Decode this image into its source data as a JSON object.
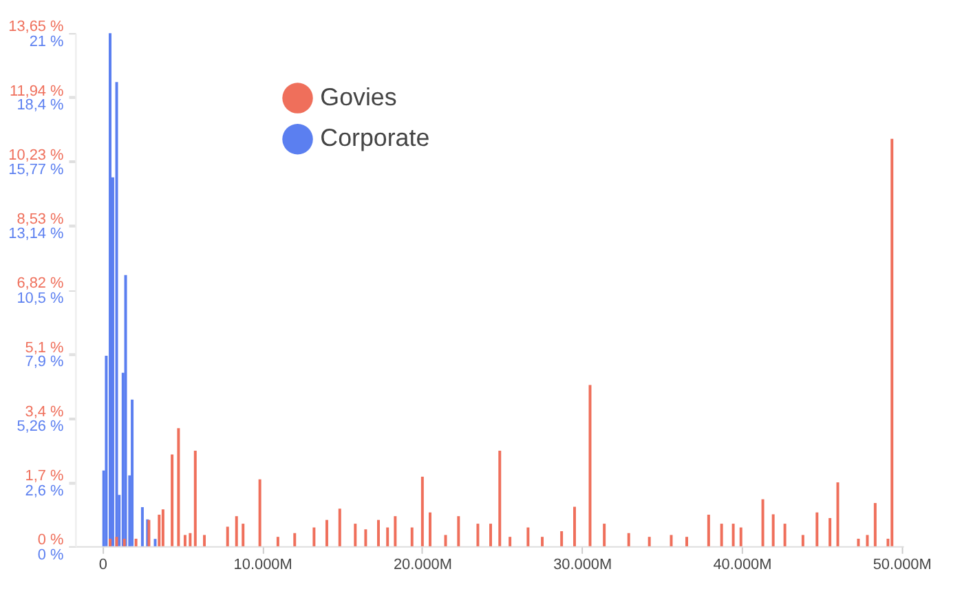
{
  "chart_data": {
    "type": "bar",
    "legend": "top",
    "xlim": [
      -1700,
      50100
    ],
    "xticks": [
      0,
      {
        "value": 10000,
        "label": "10.000M"
      },
      {
        "value": 20000,
        "label": "20.000M"
      },
      {
        "value": 30000,
        "label": "30.000M"
      },
      {
        "value": 40000,
        "label": "40.000M"
      },
      {
        "value": 50000,
        "label": "50.000M"
      }
    ],
    "ylim": [
      0,
      13.65
    ],
    "yticks": [
      {
        "value": 0,
        "label": "0 %"
      },
      {
        "value": 1.7,
        "label": "1,7 %"
      },
      {
        "value": 3.4,
        "label": "3,4 %"
      },
      {
        "value": 5.1,
        "label": "5,1 %"
      },
      {
        "value": 6.82,
        "label": "6,82 %"
      },
      {
        "value": 8.53,
        "label": "8,53 %"
      },
      {
        "value": 10.23,
        "label": "10,23 %"
      },
      {
        "value": 11.94,
        "label": "11,94 %"
      },
      {
        "value": 13.65,
        "label": "13,65 %"
      }
    ],
    "y2lim": [
      0,
      21
    ],
    "y2ticks": [
      {
        "value": 0,
        "label": "0 %"
      },
      {
        "value": 2.6,
        "label": "2,6 %"
      },
      {
        "value": 5.26,
        "label": "5,26 %"
      },
      {
        "value": 7.9,
        "label": "7,9 %"
      },
      {
        "value": 10.5,
        "label": "10,5 %"
      },
      {
        "value": 13.14,
        "label": "13,14 %"
      },
      {
        "value": 15.77,
        "label": "15,77 %"
      },
      {
        "value": 18.4,
        "label": "18,4 %"
      },
      {
        "value": 21,
        "label": "21 %"
      }
    ],
    "series": [
      {
        "name": "Govies",
        "color": "#ef6f5b",
        "x": [
          480,
          890,
          1370,
          2100,
          2910,
          3550,
          3790,
          4360,
          4760,
          5170,
          5490,
          5810,
          6380,
          7830,
          8390,
          8800,
          9850,
          10980,
          12030,
          13240,
          14040,
          14850,
          15820,
          16470,
          17270,
          17840,
          18320,
          19370,
          20020,
          20500,
          21470,
          22280,
          23490,
          24290,
          24860,
          25500,
          26630,
          27520,
          28730,
          29540,
          30510,
          31400,
          32930,
          34220,
          35590,
          36560,
          37930,
          38740,
          39470,
          39950,
          41320,
          41970,
          42700,
          43830,
          44710,
          45520,
          46010,
          47300,
          47860,
          48350,
          49150,
          49400
        ],
        "values": [
          0.2,
          0.25,
          0.2,
          0.2,
          0.7,
          0.84,
          0.98,
          2.44,
          3.14,
          0.3,
          0.35,
          2.54,
          0.3,
          0.52,
          0.8,
          0.6,
          1.78,
          0.25,
          0.35,
          0.5,
          0.7,
          1.0,
          0.6,
          0.45,
          0.7,
          0.5,
          0.8,
          0.5,
          1.85,
          0.9,
          0.3,
          0.8,
          0.6,
          0.6,
          2.54,
          0.25,
          0.5,
          0.25,
          0.4,
          1.05,
          4.29,
          0.6,
          0.35,
          0.25,
          0.3,
          0.25,
          0.84,
          0.6,
          0.6,
          0.5,
          1.25,
          0.85,
          0.6,
          0.3,
          0.9,
          0.75,
          1.7,
          0.2,
          0.3,
          1.15,
          0.2,
          10.84
        ]
      },
      {
        "name": "Corporate",
        "color": "#5b7ff0",
        "axis": "y2",
        "x": [
          80,
          240,
          480,
          650,
          890,
          1050,
          1290,
          1450,
          1700,
          1860,
          2500,
          2820,
          3300
        ],
        "values": [
          3.1,
          7.8,
          21,
          15.1,
          19.0,
          2.1,
          7.1,
          11.1,
          2.9,
          6.0,
          1.6,
          1.1,
          0.3
        ]
      }
    ]
  }
}
